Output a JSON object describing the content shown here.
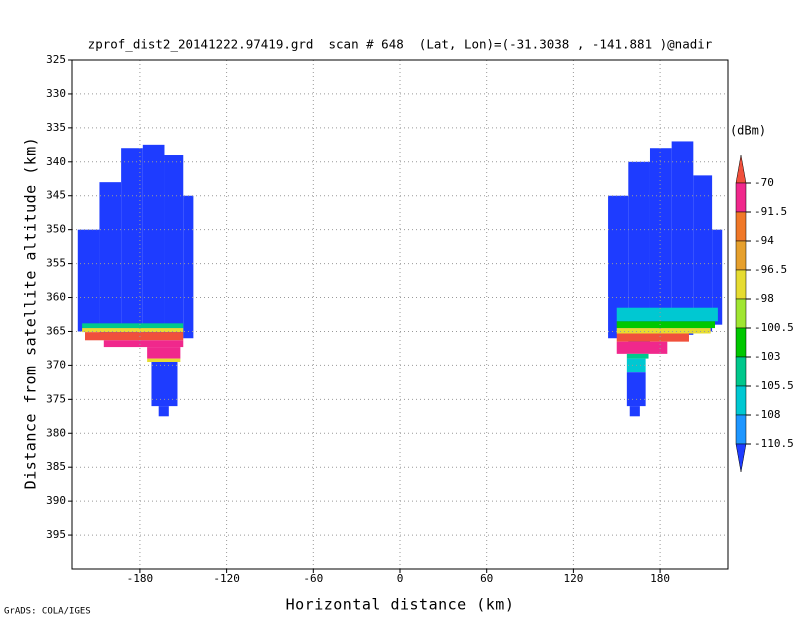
{
  "chart_data": {
    "type": "shaded",
    "title": "zprof_dist2_20141222.97419.grd  scan # 648  (Lat, Lon)=(-31.3038 , -141.881 )@nadir",
    "x_label": "Horizontal distance (km)",
    "y_label": "Distance from satellite altitude (km)",
    "colorbar_label": "(dBm)",
    "footer": "GrADS: COLA/IGES",
    "xlim": [
      -227,
      227
    ],
    "xticks": [
      -180,
      -120,
      -60,
      0,
      60,
      120,
      180
    ],
    "ylim": [
      325,
      400
    ],
    "yticks": [
      325,
      330,
      335,
      340,
      345,
      350,
      355,
      360,
      365,
      370,
      375,
      380,
      385,
      390,
      395
    ],
    "y_inverted": true,
    "grid": true,
    "levels": [
      -70,
      -91.5,
      -94,
      -96.5,
      -98,
      -100.5,
      -103,
      -105.5,
      -108,
      -110.5
    ],
    "colors": [
      "#f0503c",
      "#f0288c",
      "#f07828",
      "#e6a02d",
      "#e6dc32",
      "#a0e632",
      "#00c800",
      "#00c88c",
      "#00c8d2",
      "#1e96ff",
      "#1e3cff"
    ],
    "cells": [
      {
        "x": [
          -223,
          -208
        ],
        "y": [
          350,
          365
        ],
        "value": -115
      },
      {
        "x": [
          -208,
          -193
        ],
        "y": [
          343,
          365.5
        ],
        "value": -115
      },
      {
        "x": [
          -193,
          -178
        ],
        "y": [
          338,
          366
        ],
        "value": -115
      },
      {
        "x": [
          -178,
          -163
        ],
        "y": [
          337.5,
          366
        ],
        "value": -115
      },
      {
        "x": [
          -163,
          -150
        ],
        "y": [
          339,
          366
        ],
        "value": -115
      },
      {
        "x": [
          -150,
          -143
        ],
        "y": [
          345,
          366
        ],
        "value": -115
      },
      {
        "x": [
          -220,
          -150
        ],
        "y": [
          363.8,
          364.5
        ],
        "value": -104
      },
      {
        "x": [
          -220,
          -150
        ],
        "y": [
          364.5,
          365.1
        ],
        "value": -97
      },
      {
        "x": [
          -218,
          -150
        ],
        "y": [
          365.1,
          366.3
        ],
        "value": -65
      },
      {
        "x": [
          -205,
          -150
        ],
        "y": [
          366.3,
          367.3
        ],
        "value": -80
      },
      {
        "x": [
          -175,
          -152
        ],
        "y": [
          367.3,
          369
        ],
        "value": -80
      },
      {
        "x": [
          -175,
          -152
        ],
        "y": [
          369,
          369.5
        ],
        "value": -97
      },
      {
        "x": [
          -172,
          -154
        ],
        "y": [
          369.5,
          376
        ],
        "value": -115
      },
      {
        "x": [
          -167,
          -160
        ],
        "y": [
          376,
          377.5
        ],
        "value": -115
      },
      {
        "x": [
          144,
          158
        ],
        "y": [
          345,
          366
        ],
        "value": -115
      },
      {
        "x": [
          158,
          173
        ],
        "y": [
          340,
          367
        ],
        "value": -115
      },
      {
        "x": [
          173,
          188
        ],
        "y": [
          338,
          366
        ],
        "value": -115
      },
      {
        "x": [
          188,
          203
        ],
        "y": [
          337,
          365.5
        ],
        "value": -115
      },
      {
        "x": [
          203,
          216
        ],
        "y": [
          342,
          365
        ],
        "value": -115
      },
      {
        "x": [
          216,
          223
        ],
        "y": [
          350,
          364
        ],
        "value": -115
      },
      {
        "x": [
          150,
          220
        ],
        "y": [
          361.5,
          363.5
        ],
        "value": -107
      },
      {
        "x": [
          150,
          218
        ],
        "y": [
          363.5,
          364.5
        ],
        "value": -102
      },
      {
        "x": [
          150,
          215
        ],
        "y": [
          364.5,
          365.3
        ],
        "value": -97
      },
      {
        "x": [
          150,
          200
        ],
        "y": [
          365.3,
          366.5
        ],
        "value": -65
      },
      {
        "x": [
          150,
          185
        ],
        "y": [
          366.5,
          368.3
        ],
        "value": -80
      },
      {
        "x": [
          157,
          172
        ],
        "y": [
          368.3,
          369
        ],
        "value": -104
      },
      {
        "x": [
          157,
          170
        ],
        "y": [
          369,
          371
        ],
        "value": -107
      },
      {
        "x": [
          157,
          170
        ],
        "y": [
          371,
          376
        ],
        "value": -115
      },
      {
        "x": [
          159,
          166
        ],
        "y": [
          376,
          377.5
        ],
        "value": -115
      }
    ]
  }
}
